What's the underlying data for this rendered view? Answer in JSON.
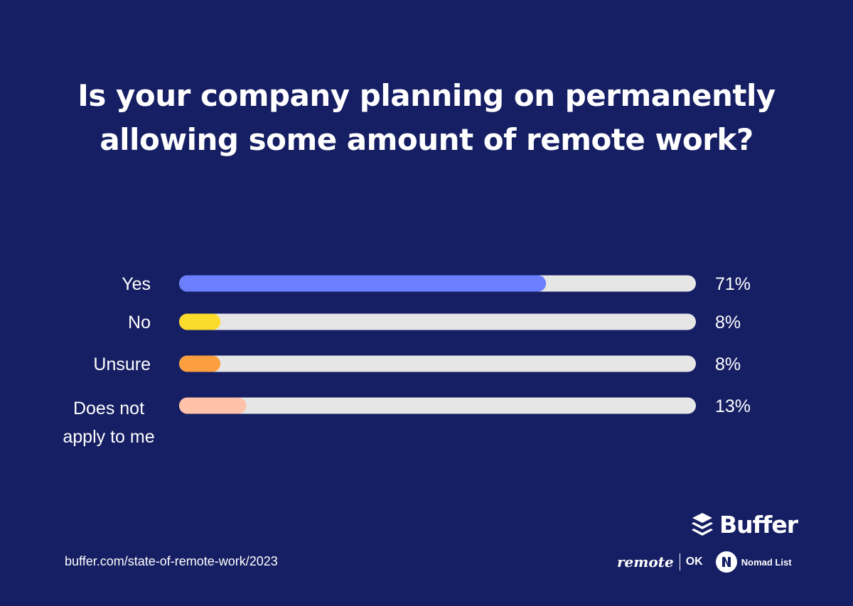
{
  "title": "Is your company planning on permanently allowing some amount of remote work?",
  "chart_data": {
    "type": "bar",
    "orientation": "horizontal",
    "categories": [
      "Yes",
      "No",
      "Unsure",
      "Does not apply to me"
    ],
    "category_lines": [
      [
        "Yes"
      ],
      [
        "No"
      ],
      [
        "Unsure"
      ],
      [
        "Does not",
        "apply to me"
      ]
    ],
    "values": [
      71,
      8,
      8,
      13
    ],
    "value_labels": [
      "71%",
      "8%",
      "8%",
      "13%"
    ],
    "xlim": [
      0,
      100
    ],
    "unit": "%",
    "colors": [
      "#6b7ffd",
      "#fbdc2d",
      "#fd9f3e",
      "#fec2a8"
    ],
    "track_color": "#e6e6e6",
    "grid": false,
    "legend": "none"
  },
  "footer": {
    "url": "buffer.com/state-of-remote-work/2023"
  },
  "logos": {
    "buffer": "Buffer",
    "buffer_icon": "stacked-layers-icon",
    "remote": "remote",
    "ok": "OK",
    "nomad_badge_letter": "N",
    "nomad": "Nomad List"
  },
  "colors": {
    "background": "#161f63",
    "text": "#ffffff"
  }
}
